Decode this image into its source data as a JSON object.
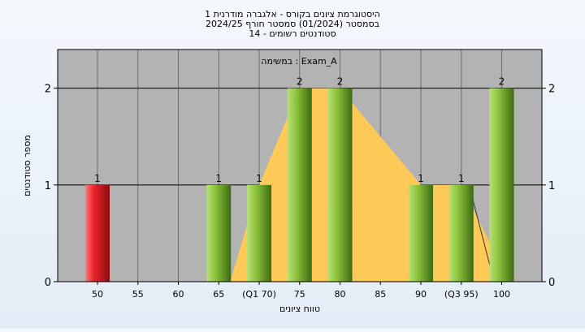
{
  "chart_data": {
    "type": "bar",
    "title_lines": [
      "היסטוגרמת ציונים בקורס - אלגברה מודרנית 1",
      "בסמסטר  (01/2024)  סמסטר חורף 2024/25",
      "סטודנטים רשומים - 14"
    ],
    "annotation": "במשימה : Exam_A",
    "xlabel": "טווח ציונים",
    "ylabel": "מספר סטודנטים",
    "ylim": [
      0,
      2.4
    ],
    "y_ticks": [
      0,
      1,
      2
    ],
    "x_ticks": [
      "50",
      "55",
      "60",
      "65",
      "(Q1 70)",
      "75",
      "80",
      "85",
      "90",
      "(Q3 95)",
      "100"
    ],
    "bars": [
      {
        "x": "50",
        "value": 1,
        "label": "1",
        "color": "red"
      },
      {
        "x": "65",
        "value": 1,
        "label": "1",
        "color": "green"
      },
      {
        "x": "(Q1 70)",
        "value": 1,
        "label": "1",
        "color": "green"
      },
      {
        "x": "75",
        "value": 2,
        "label": "2",
        "color": "green"
      },
      {
        "x": "80",
        "value": 2,
        "label": "2",
        "color": "green"
      },
      {
        "x": "90",
        "value": 1,
        "label": "1",
        "color": "green"
      },
      {
        "x": "(Q3 95)",
        "value": 1,
        "label": "1",
        "color": "green"
      },
      {
        "x": "100",
        "value": 2,
        "label": "2",
        "color": "green"
      }
    ],
    "grid": true,
    "colors": {
      "plot_bg": "#b3b3b3",
      "area_fill": "#ffc957",
      "bar_red": "#e8232b",
      "bar_green": "#8ec43c",
      "grid": "#000000"
    }
  }
}
